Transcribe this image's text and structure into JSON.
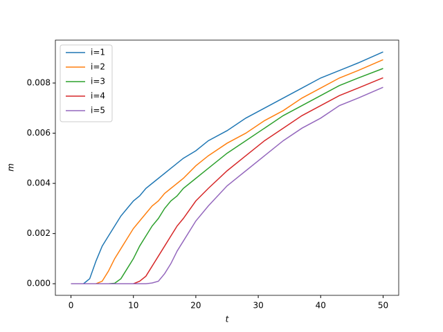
{
  "chart_data": {
    "type": "line",
    "xlabel": "t",
    "ylabel": "m",
    "x": [
      0,
      2,
      3,
      4,
      5,
      6,
      7,
      8,
      9,
      10,
      11,
      12,
      13,
      14,
      15,
      16,
      17,
      18,
      20,
      22,
      25,
      28,
      31,
      34,
      37,
      40,
      43,
      46,
      50
    ],
    "series": [
      {
        "name": "i=1",
        "color": "#1f77b4",
        "values": [
          0,
          0,
          0.0002,
          0.0009,
          0.0015,
          0.0019,
          0.0023,
          0.0027,
          0.003,
          0.0033,
          0.0035,
          0.0038,
          0.004,
          0.0042,
          0.0044,
          0.0046,
          0.0048,
          0.005,
          0.0053,
          0.0057,
          0.0061,
          0.0066,
          0.007,
          0.0074,
          0.0078,
          0.0082,
          0.0085,
          0.0088,
          0.00924
        ]
      },
      {
        "name": "i=2",
        "color": "#ff7f0e",
        "values": [
          0,
          0,
          0,
          0,
          0.0001,
          0.0005,
          0.001,
          0.0014,
          0.0018,
          0.0022,
          0.0025,
          0.0028,
          0.0031,
          0.0033,
          0.0036,
          0.0038,
          0.004,
          0.0042,
          0.0047,
          0.0051,
          0.0056,
          0.006,
          0.0065,
          0.0069,
          0.0074,
          0.0078,
          0.0082,
          0.0085,
          0.00893
        ]
      },
      {
        "name": "i=3",
        "color": "#2ca02c",
        "values": [
          0,
          0,
          0,
          0,
          0,
          0,
          2e-05,
          0.0002,
          0.0006,
          0.001,
          0.0015,
          0.0019,
          0.0023,
          0.0026,
          0.003,
          0.0033,
          0.0035,
          0.0038,
          0.0042,
          0.0046,
          0.0052,
          0.0057,
          0.0062,
          0.0067,
          0.0071,
          0.0075,
          0.0079,
          0.0082,
          0.00858
        ]
      },
      {
        "name": "i=4",
        "color": "#d62728",
        "values": [
          0,
          0,
          0,
          0,
          0,
          0,
          0,
          0,
          0,
          0,
          0.0001,
          0.0003,
          0.0007,
          0.0011,
          0.0015,
          0.0019,
          0.0023,
          0.0026,
          0.0033,
          0.0038,
          0.0045,
          0.0051,
          0.0057,
          0.0062,
          0.0067,
          0.0071,
          0.0075,
          0.0078,
          0.00821
        ]
      },
      {
        "name": "i=5",
        "color": "#9467bd",
        "values": [
          0,
          0,
          0,
          0,
          0,
          0,
          0,
          0,
          0,
          0,
          0,
          0,
          3e-05,
          0.0001,
          0.0004,
          0.0008,
          0.0013,
          0.0017,
          0.0025,
          0.0031,
          0.0039,
          0.0045,
          0.0051,
          0.0057,
          0.0062,
          0.0066,
          0.0071,
          0.0074,
          0.00783
        ]
      }
    ],
    "xlim": [
      -2.5,
      52.5
    ],
    "xticks": [
      0,
      10,
      20,
      30,
      40,
      50
    ],
    "ylim": [
      -0.000463,
      0.00971
    ],
    "yticks": [
      {
        "value": 0,
        "label": "0.000"
      },
      {
        "value": 0.002,
        "label": "0.002"
      },
      {
        "value": 0.004,
        "label": "0.004"
      },
      {
        "value": 0.006,
        "label": "0.006"
      },
      {
        "value": 0.008,
        "label": "0.008"
      }
    ],
    "grid": false,
    "legend": "upper left"
  }
}
